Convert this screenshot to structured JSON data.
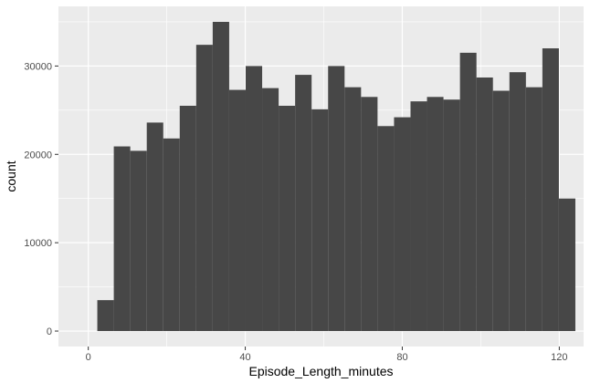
{
  "chart_data": {
    "type": "bar",
    "subtype": "histogram",
    "xlabel": "Episode_Length_minutes",
    "ylabel": "count",
    "xlim": [
      -7.6,
      126.2
    ],
    "ylim": [
      -1750,
      36750
    ],
    "x_ticks": [
      0,
      40,
      80,
      120
    ],
    "y_ticks": [
      0,
      10000,
      20000,
      30000
    ],
    "grid": true,
    "panel_background": "#ebebeb",
    "bar_color": "#474747",
    "grid_color": "#ffffff",
    "bins": [
      {
        "x0": 2.3,
        "x1": 6.5,
        "count": 3500
      },
      {
        "x0": 6.5,
        "x1": 10.7,
        "count": 20900
      },
      {
        "x0": 10.7,
        "x1": 14.9,
        "count": 20400
      },
      {
        "x0": 14.9,
        "x1": 19.1,
        "count": 23600
      },
      {
        "x0": 19.1,
        "x1": 23.3,
        "count": 21800
      },
      {
        "x0": 23.3,
        "x1": 27.5,
        "count": 25500
      },
      {
        "x0": 27.5,
        "x1": 31.7,
        "count": 32400
      },
      {
        "x0": 31.7,
        "x1": 35.9,
        "count": 35000
      },
      {
        "x0": 35.9,
        "x1": 40.1,
        "count": 27300
      },
      {
        "x0": 40.1,
        "x1": 44.3,
        "count": 30000
      },
      {
        "x0": 44.3,
        "x1": 48.5,
        "count": 27500
      },
      {
        "x0": 48.5,
        "x1": 52.7,
        "count": 25500
      },
      {
        "x0": 52.7,
        "x1": 56.9,
        "count": 29000
      },
      {
        "x0": 56.9,
        "x1": 61.1,
        "count": 25100
      },
      {
        "x0": 61.1,
        "x1": 65.3,
        "count": 30000
      },
      {
        "x0": 65.3,
        "x1": 69.5,
        "count": 27600
      },
      {
        "x0": 69.5,
        "x1": 73.7,
        "count": 26500
      },
      {
        "x0": 73.7,
        "x1": 77.9,
        "count": 23200
      },
      {
        "x0": 77.9,
        "x1": 82.1,
        "count": 24200
      },
      {
        "x0": 82.1,
        "x1": 86.3,
        "count": 26000
      },
      {
        "x0": 86.3,
        "x1": 90.5,
        "count": 26500
      },
      {
        "x0": 90.5,
        "x1": 94.7,
        "count": 26200
      },
      {
        "x0": 94.7,
        "x1": 98.9,
        "count": 31500
      },
      {
        "x0": 98.9,
        "x1": 103.1,
        "count": 28700
      },
      {
        "x0": 103.1,
        "x1": 107.3,
        "count": 27200
      },
      {
        "x0": 107.3,
        "x1": 111.5,
        "count": 29300
      },
      {
        "x0": 111.5,
        "x1": 115.7,
        "count": 27600
      },
      {
        "x0": 115.7,
        "x1": 119.9,
        "count": 32000
      },
      {
        "x0": 119.9,
        "x1": 124.1,
        "count": 15000
      }
    ]
  }
}
